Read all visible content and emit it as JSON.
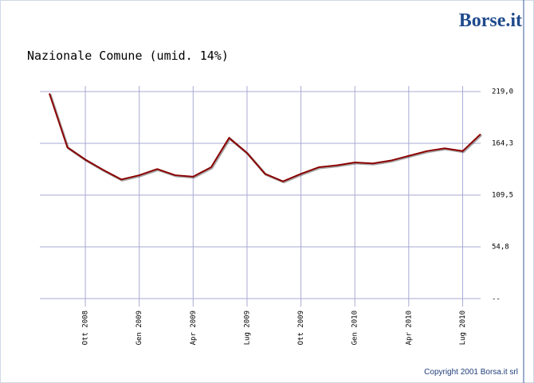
{
  "chart_data": {
    "type": "line",
    "title": "Nazionale Comune (umid. 14%)",
    "brand": "Borse.it",
    "copyright": "Copyright 2001 Borsa.it srl",
    "categories": [
      null,
      null,
      "Ott 2008",
      null,
      null,
      "Gen 2009",
      null,
      null,
      "Apr 2009",
      null,
      null,
      "Lug 2009",
      null,
      null,
      "Ott 2009",
      null,
      null,
      "Gen 2010",
      null,
      null,
      "Apr 2010",
      null,
      null,
      "Lug 2010",
      null
    ],
    "series": [
      {
        "color": "#8b0000",
        "values": [
          217,
          160,
          147,
          136,
          126,
          130.5,
          137,
          130.5,
          129,
          139,
          170,
          154,
          132,
          124,
          132,
          139,
          141,
          144,
          143,
          146,
          151,
          156,
          159,
          156,
          174
        ]
      }
    ],
    "ylim": [
      0,
      219.0
    ],
    "yticks": [
      {
        "value": 0,
        "label": "--"
      },
      {
        "value": 54.8,
        "label": "54,8"
      },
      {
        "value": 109.5,
        "label": "109,5"
      },
      {
        "value": 164.3,
        "label": "164,3"
      },
      {
        "value": 219.0,
        "label": "219,0"
      }
    ],
    "grid": true,
    "grid_color": "#a9a9d4"
  }
}
